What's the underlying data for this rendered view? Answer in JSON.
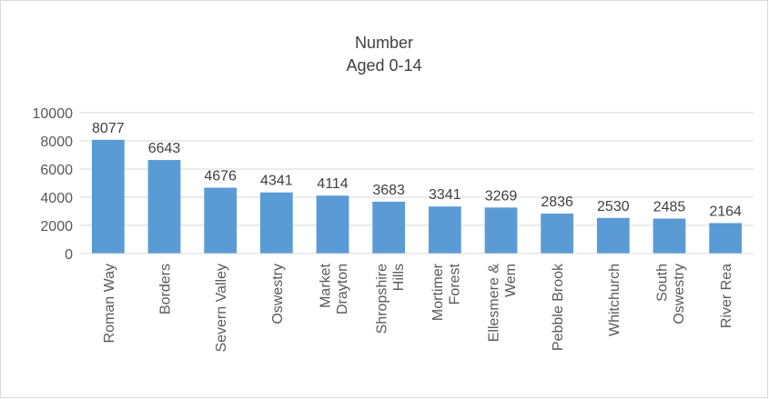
{
  "chart_data": {
    "type": "bar",
    "title": "Number",
    "subtitle": "Aged 0-14",
    "categories": [
      "Roman Way",
      "Borders",
      "Severn Valley",
      "Oswestry",
      "Market Drayton",
      "Shropshire Hills",
      "Mortimer Forest",
      "Ellesmere & Wem",
      "Pebble Brook",
      "Whitchurch",
      "South Oswestry",
      "River Rea"
    ],
    "values": [
      8077,
      6643,
      4676,
      4341,
      4114,
      3683,
      3341,
      3269,
      2836,
      2530,
      2485,
      2164
    ],
    "color": "#5b9bd5",
    "ylim": [
      0,
      10000
    ],
    "yticks": [
      0,
      2000,
      4000,
      6000,
      8000,
      10000
    ],
    "grid": true
  }
}
